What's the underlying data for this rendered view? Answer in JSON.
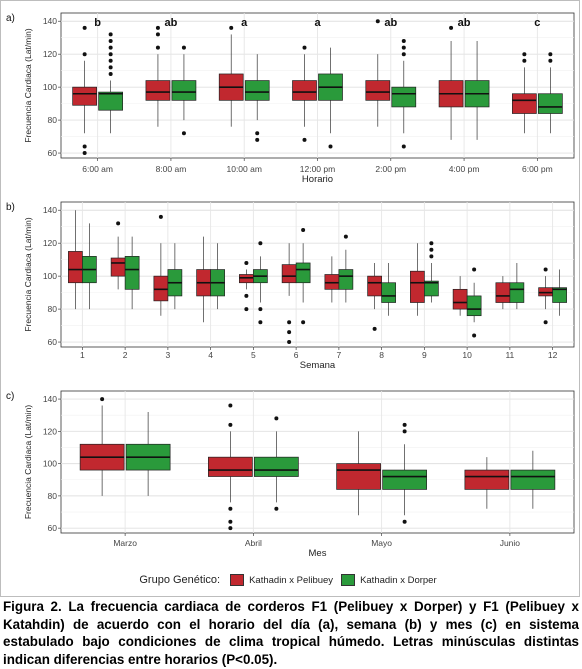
{
  "colors": {
    "kathadin_pelibuey": "#c1282f",
    "kathadin_dorper": "#2a9a3b",
    "panel_bg": "#ffffff",
    "grid": "#e6e6e6"
  },
  "legend": {
    "title": "Grupo Genético:",
    "items": [
      {
        "label": "Kathadin x Pelibuey",
        "color": "#c1282f"
      },
      {
        "label": "Kathadin x Dorper",
        "color": "#2a9a3b"
      }
    ]
  },
  "caption": "Figura 2. La frecuencia cardiaca de corderos F1 (Pelibuey x Dorper) y F1 (Pelibuey x Katahdin) de acuerdo con el horario del día (a), semana (b) y mes (c) en sistema estabulado bajo condiciones de clima tropical húmedo. Letras minúsculas distintas indican diferencias entre horarios (P<0.05).",
  "chart_data": [
    {
      "type": "box",
      "panel_label": "a)",
      "xlabel": "Horario",
      "ylabel": "Frecuencia Cardiaca (Lat/min)",
      "ylim": [
        57,
        145
      ],
      "yticks": [
        60,
        80,
        100,
        120,
        140
      ],
      "grid": true,
      "categories": [
        "6:00 am",
        "8:00 am",
        "10:00 am",
        "12:00 pm",
        "2:00 pm",
        "4:00 pm",
        "6:00 pm"
      ],
      "letters": [
        "b",
        "ab",
        "a",
        "a",
        "ab",
        "ab",
        "c"
      ],
      "series": [
        {
          "name": "Kathadin x Pelibuey",
          "boxes": [
            {
              "low": 72,
              "q1": 89,
              "median": 96,
              "q3": 100,
              "high": 116,
              "outliers": [
                120,
                136,
                64,
                60
              ]
            },
            {
              "low": 76,
              "q1": 92,
              "median": 97,
              "q3": 104,
              "high": 120,
              "outliers": [
                124,
                132,
                136
              ]
            },
            {
              "low": 76,
              "q1": 92,
              "median": 100,
              "q3": 108,
              "high": 132,
              "outliers": [
                136
              ]
            },
            {
              "low": 76,
              "q1": 92,
              "median": 97,
              "q3": 104,
              "high": 120,
              "outliers": [
                124,
                68
              ]
            },
            {
              "low": 76,
              "q1": 92,
              "median": 97,
              "q3": 104,
              "high": 120,
              "outliers": [
                140
              ]
            },
            {
              "low": 68,
              "q1": 88,
              "median": 96,
              "q3": 104,
              "high": 128,
              "outliers": [
                136
              ]
            },
            {
              "low": 72,
              "q1": 84,
              "median": 92,
              "q3": 96,
              "high": 112,
              "outliers": [
                116,
                120
              ]
            }
          ]
        },
        {
          "name": "Kathadin x Dorper",
          "boxes": [
            {
              "low": 72,
              "q1": 86,
              "median": 96,
              "q3": 97,
              "high": 104,
              "outliers": [
                108,
                112,
                116,
                120,
                124,
                128,
                132
              ]
            },
            {
              "low": 80,
              "q1": 92,
              "median": 97,
              "q3": 104,
              "high": 120,
              "outliers": [
                124,
                72
              ]
            },
            {
              "low": 80,
              "q1": 92,
              "median": 97,
              "q3": 104,
              "high": 120,
              "outliers": [
                72,
                68
              ]
            },
            {
              "low": 72,
              "q1": 92,
              "median": 100,
              "q3": 108,
              "high": 124,
              "outliers": [
                64
              ]
            },
            {
              "low": 72,
              "q1": 88,
              "median": 96,
              "q3": 100,
              "high": 116,
              "outliers": [
                120,
                124,
                128,
                64
              ]
            },
            {
              "low": 68,
              "q1": 88,
              "median": 96,
              "q3": 104,
              "high": 128,
              "outliers": []
            },
            {
              "low": 72,
              "q1": 84,
              "median": 88,
              "q3": 96,
              "high": 112,
              "outliers": [
                116,
                120
              ]
            }
          ]
        }
      ]
    },
    {
      "type": "box",
      "panel_label": "b)",
      "xlabel": "Semana",
      "ylabel": "Frecuencia Cardiaca (Lat/min)",
      "ylim": [
        57,
        145
      ],
      "yticks": [
        60,
        80,
        100,
        120,
        140
      ],
      "grid": true,
      "categories": [
        "1",
        "2",
        "3",
        "4",
        "5",
        "6",
        "7",
        "8",
        "9",
        "10",
        "11",
        "12"
      ],
      "series": [
        {
          "name": "Kathadin x Pelibuey",
          "boxes": [
            {
              "low": 80,
              "q1": 96,
              "median": 104,
              "q3": 115,
              "high": 140,
              "outliers": []
            },
            {
              "low": 92,
              "q1": 100,
              "median": 108,
              "q3": 111,
              "high": 124,
              "outliers": [
                132
              ]
            },
            {
              "low": 76,
              "q1": 85,
              "median": 92,
              "q3": 100,
              "high": 120,
              "outliers": [
                136
              ]
            },
            {
              "low": 72,
              "q1": 88,
              "median": 96,
              "q3": 104,
              "high": 124,
              "outliers": []
            },
            {
              "low": 92,
              "q1": 96,
              "median": 99,
              "q3": 101,
              "high": 104,
              "outliers": [
                108,
                88,
                80
              ]
            },
            {
              "low": 88,
              "q1": 96,
              "median": 100,
              "q3": 107,
              "high": 120,
              "outliers": [
                72,
                66,
                60
              ]
            },
            {
              "low": 84,
              "q1": 92,
              "median": 96,
              "q3": 101,
              "high": 112,
              "outliers": []
            },
            {
              "low": 80,
              "q1": 88,
              "median": 96,
              "q3": 100,
              "high": 108,
              "outliers": [
                68
              ]
            },
            {
              "low": 76,
              "q1": 84,
              "median": 96,
              "q3": 103,
              "high": 120,
              "outliers": []
            },
            {
              "low": 76,
              "q1": 80,
              "median": 84,
              "q3": 92,
              "high": 100,
              "outliers": []
            },
            {
              "low": 80,
              "q1": 84,
              "median": 88,
              "q3": 96,
              "high": 100,
              "outliers": []
            },
            {
              "low": 80,
              "q1": 88,
              "median": 90,
              "q3": 93,
              "high": 100,
              "outliers": [
                72,
                104
              ]
            }
          ]
        },
        {
          "name": "Kathadin x Dorper",
          "boxes": [
            {
              "low": 80,
              "q1": 96,
              "median": 104,
              "q3": 112,
              "high": 132,
              "outliers": []
            },
            {
              "low": 80,
              "q1": 92,
              "median": 104,
              "q3": 112,
              "high": 124,
              "outliers": []
            },
            {
              "low": 80,
              "q1": 88,
              "median": 96,
              "q3": 104,
              "high": 120,
              "outliers": []
            },
            {
              "low": 80,
              "q1": 88,
              "median": 96,
              "q3": 104,
              "high": 120,
              "outliers": []
            },
            {
              "low": 84,
              "q1": 96,
              "median": 100,
              "q3": 104,
              "high": 112,
              "outliers": [
                120,
                80,
                72
              ]
            },
            {
              "low": 84,
              "q1": 96,
              "median": 104,
              "q3": 108,
              "high": 120,
              "outliers": [
                128,
                72
              ]
            },
            {
              "low": 84,
              "q1": 92,
              "median": 100,
              "q3": 104,
              "high": 116,
              "outliers": [
                124
              ]
            },
            {
              "low": 76,
              "q1": 84,
              "median": 88,
              "q3": 96,
              "high": 108,
              "outliers": []
            },
            {
              "low": 84,
              "q1": 88,
              "median": 96,
              "q3": 97,
              "high": 108,
              "outliers": [
                112,
                116,
                120
              ]
            },
            {
              "low": 72,
              "q1": 76,
              "median": 80,
              "q3": 88,
              "high": 96,
              "outliers": [
                104,
                64
              ]
            },
            {
              "low": 80,
              "q1": 84,
              "median": 92,
              "q3": 96,
              "high": 108,
              "outliers": []
            },
            {
              "low": 76,
              "q1": 84,
              "median": 92,
              "q3": 93,
              "high": 104,
              "outliers": []
            }
          ]
        }
      ]
    },
    {
      "type": "box",
      "panel_label": "c)",
      "xlabel": "Mes",
      "ylabel": "Frecuencia Cardiaca (Lat/min)",
      "ylim": [
        57,
        145
      ],
      "yticks": [
        60,
        80,
        100,
        120,
        140
      ],
      "grid": true,
      "categories": [
        "Marzo",
        "Abril",
        "Mayo",
        "Junio"
      ],
      "series": [
        {
          "name": "Kathadin x Pelibuey",
          "boxes": [
            {
              "low": 80,
              "q1": 96,
              "median": 104,
              "q3": 112,
              "high": 136,
              "outliers": [
                140
              ]
            },
            {
              "low": 76,
              "q1": 92,
              "median": 96,
              "q3": 104,
              "high": 120,
              "outliers": [
                124,
                136,
                72,
                64,
                60
              ]
            },
            {
              "low": 68,
              "q1": 84,
              "median": 96,
              "q3": 100,
              "high": 120,
              "outliers": []
            },
            {
              "low": 72,
              "q1": 84,
              "median": 92,
              "q3": 96,
              "high": 104,
              "outliers": []
            }
          ]
        },
        {
          "name": "Kathadin x Dorper",
          "boxes": [
            {
              "low": 80,
              "q1": 96,
              "median": 104,
              "q3": 112,
              "high": 132,
              "outliers": []
            },
            {
              "low": 76,
              "q1": 92,
              "median": 96,
              "q3": 104,
              "high": 120,
              "outliers": [
                128,
                72
              ]
            },
            {
              "low": 68,
              "q1": 84,
              "median": 92,
              "q3": 96,
              "high": 112,
              "outliers": [
                120,
                124,
                64
              ]
            },
            {
              "low": 72,
              "q1": 84,
              "median": 92,
              "q3": 96,
              "high": 108,
              "outliers": []
            }
          ]
        }
      ]
    }
  ]
}
